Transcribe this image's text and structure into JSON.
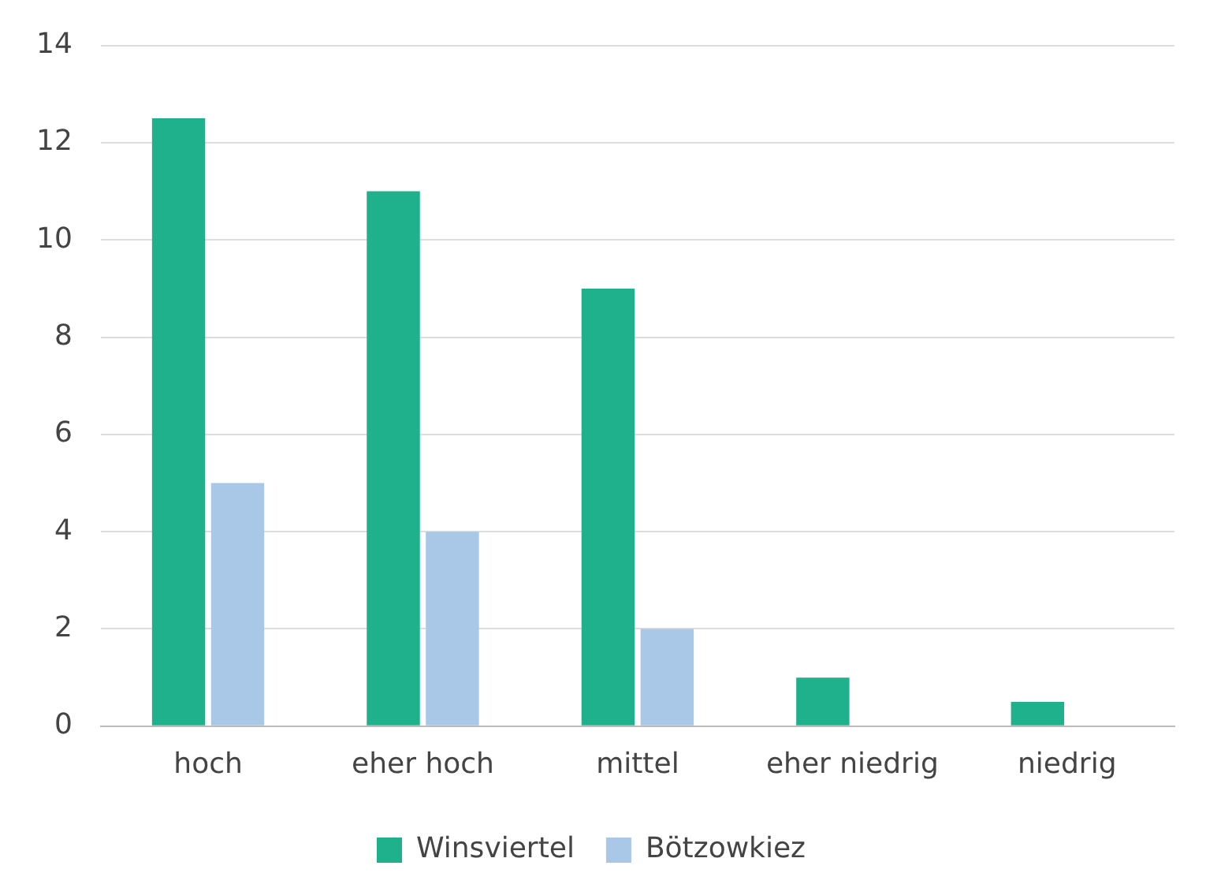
{
  "chart_data": {
    "type": "bar",
    "categories": [
      "hoch",
      "eher hoch",
      "mittel",
      "eher niedrig",
      "niedrig"
    ],
    "series": [
      {
        "name": "Winsviertel",
        "color": "#1fb18b",
        "values": [
          12.5,
          11,
          9,
          1,
          0.5
        ]
      },
      {
        "name": "Bötzowkiez",
        "color": "#a9c7e6",
        "values": [
          5,
          4,
          2,
          0,
          0
        ]
      }
    ],
    "ylim": [
      0,
      14
    ],
    "yticks": [
      0,
      2,
      4,
      6,
      8,
      10,
      12,
      14
    ],
    "grid": "y",
    "legend": "bottom"
  }
}
